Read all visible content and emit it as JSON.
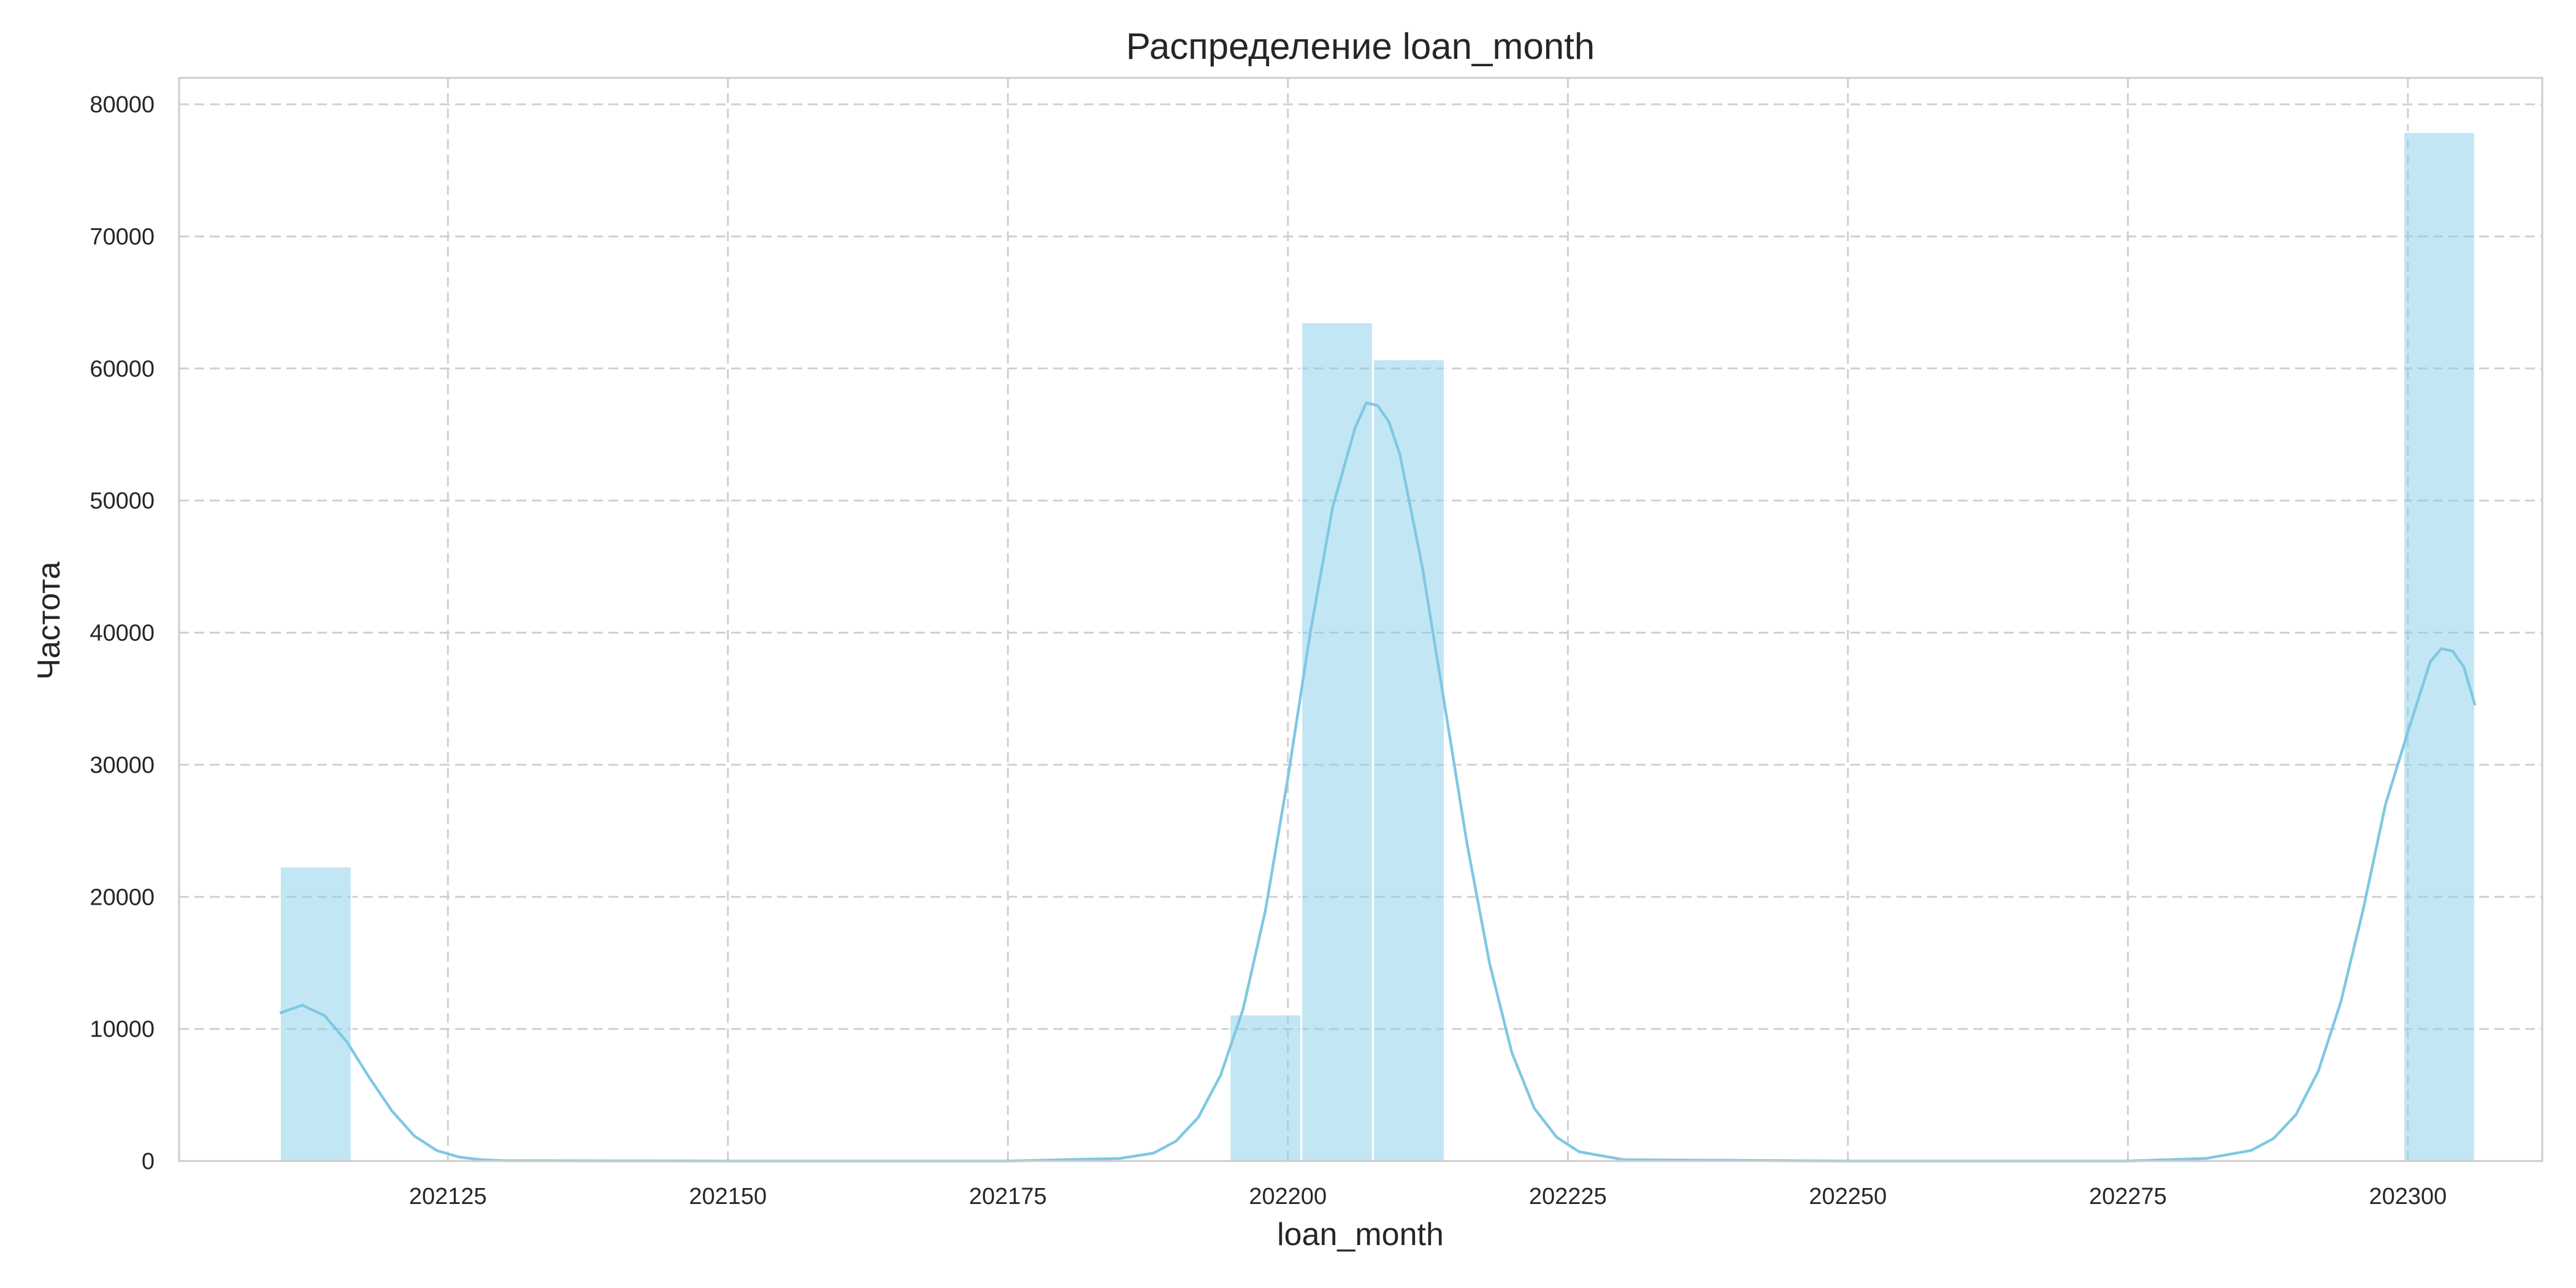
{
  "chart_data": {
    "type": "bar",
    "title": "Распределение loan_month",
    "xlabel": "loan_month",
    "ylabel": "Частота",
    "xlim": [
      202101,
      202312
    ],
    "ylim": [
      0,
      82000
    ],
    "xticks": [
      202125,
      202150,
      202175,
      202200,
      202225,
      202250,
      202275,
      202300
    ],
    "yticks": [
      0,
      10000,
      20000,
      30000,
      40000,
      50000,
      60000,
      70000,
      80000
    ],
    "grid": true,
    "bar_color": "#87CEEB",
    "line_color": "#7FC8E3",
    "bins": [
      {
        "x0": 202110.0,
        "x1": 202116.4,
        "value": 22300
      },
      {
        "x0": 202194.8,
        "x1": 202201.2,
        "value": 11100
      },
      {
        "x0": 202201.2,
        "x1": 202207.6,
        "value": 63500
      },
      {
        "x0": 202207.6,
        "x1": 202214.0,
        "value": 60700
      },
      {
        "x0": 202299.6,
        "x1": 202306.0,
        "value": 77900
      }
    ],
    "kde": {
      "x": [
        202110,
        202112,
        202114,
        202116,
        202118,
        202120,
        202122,
        202124,
        202126,
        202128,
        202130,
        202150,
        202175,
        202185,
        202188,
        202190,
        202192,
        202194,
        202196,
        202198,
        202200,
        202202,
        202204,
        202206,
        202207,
        202208,
        202209,
        202210,
        202212,
        202214,
        202216,
        202218,
        202220,
        202222,
        202224,
        202226,
        202230,
        202250,
        202275,
        202282,
        202286,
        202288,
        202290,
        202292,
        202294,
        202296,
        202298,
        202300,
        202302,
        202303,
        202304,
        202305,
        202306
      ],
      "y": [
        11200,
        11800,
        11000,
        9000,
        6300,
        3800,
        1900,
        800,
        300,
        100,
        30,
        0,
        0,
        200,
        600,
        1500,
        3300,
        6500,
        11500,
        19000,
        29000,
        40000,
        49500,
        55500,
        57400,
        57200,
        56000,
        53500,
        45000,
        34500,
        24000,
        15000,
        8200,
        4000,
        1800,
        700,
        100,
        0,
        0,
        200,
        800,
        1700,
        3500,
        6800,
        12000,
        19000,
        27000,
        32500,
        37800,
        38800,
        38600,
        37400,
        34500
      ]
    }
  }
}
